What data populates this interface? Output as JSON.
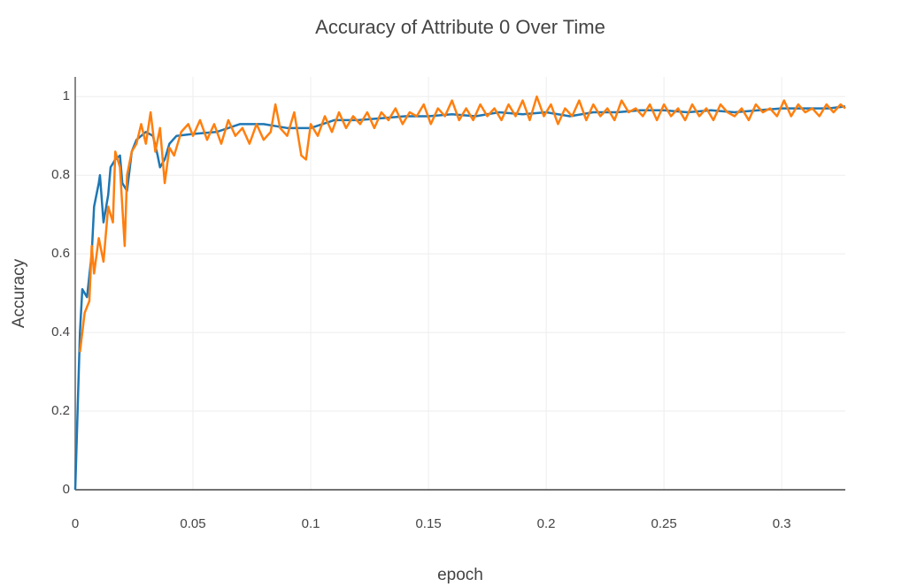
{
  "chart_data": {
    "type": "line",
    "title": "Accuracy of Attribute 0 Over Time",
    "xlabel": "epoch",
    "ylabel": "Accuracy",
    "xlim": [
      0,
      0.327
    ],
    "ylim": [
      0,
      1.05
    ],
    "xticks": [
      0,
      0.05,
      0.1,
      0.15,
      0.2,
      0.25,
      0.3
    ],
    "yticks": [
      0,
      0.2,
      0.4,
      0.6,
      0.8,
      1
    ],
    "grid": true,
    "series": [
      {
        "color": "#1f77b4",
        "x": [
          0,
          0.002,
          0.003,
          0.005,
          0.007,
          0.008,
          0.01,
          0.0105,
          0.012,
          0.014,
          0.015,
          0.017,
          0.019,
          0.02,
          0.022,
          0.024,
          0.026,
          0.028,
          0.03,
          0.033,
          0.035,
          0.036,
          0.038,
          0.04,
          0.043,
          0.05,
          0.06,
          0.07,
          0.08,
          0.09,
          0.1,
          0.11,
          0.12,
          0.13,
          0.14,
          0.15,
          0.16,
          0.17,
          0.18,
          0.19,
          0.2,
          0.21,
          0.22,
          0.23,
          0.24,
          0.25,
          0.26,
          0.27,
          0.28,
          0.29,
          0.3,
          0.31,
          0.32,
          0.327
        ],
        "values": [
          0,
          0.4,
          0.51,
          0.49,
          0.6,
          0.72,
          0.78,
          0.8,
          0.68,
          0.75,
          0.82,
          0.84,
          0.85,
          0.78,
          0.76,
          0.86,
          0.89,
          0.9,
          0.91,
          0.9,
          0.85,
          0.82,
          0.84,
          0.88,
          0.9,
          0.905,
          0.91,
          0.93,
          0.93,
          0.92,
          0.92,
          0.94,
          0.94,
          0.945,
          0.95,
          0.95,
          0.955,
          0.95,
          0.96,
          0.955,
          0.96,
          0.95,
          0.96,
          0.96,
          0.965,
          0.965,
          0.96,
          0.965,
          0.96,
          0.965,
          0.97,
          0.97,
          0.97,
          0.975
        ]
      },
      {
        "color": "#ff7f0e",
        "x": [
          0.002,
          0.004,
          0.006,
          0.007,
          0.008,
          0.01,
          0.012,
          0.014,
          0.016,
          0.017,
          0.019,
          0.021,
          0.022,
          0.024,
          0.026,
          0.028,
          0.03,
          0.032,
          0.034,
          0.036,
          0.038,
          0.04,
          0.042,
          0.045,
          0.048,
          0.05,
          0.053,
          0.056,
          0.059,
          0.062,
          0.065,
          0.068,
          0.071,
          0.074,
          0.077,
          0.08,
          0.083,
          0.085,
          0.087,
          0.09,
          0.093,
          0.096,
          0.098,
          0.1,
          0.103,
          0.106,
          0.109,
          0.112,
          0.115,
          0.118,
          0.121,
          0.124,
          0.127,
          0.13,
          0.133,
          0.136,
          0.139,
          0.142,
          0.145,
          0.148,
          0.151,
          0.154,
          0.157,
          0.16,
          0.163,
          0.166,
          0.169,
          0.172,
          0.175,
          0.178,
          0.181,
          0.184,
          0.187,
          0.19,
          0.193,
          0.196,
          0.199,
          0.202,
          0.205,
          0.208,
          0.211,
          0.214,
          0.217,
          0.22,
          0.223,
          0.226,
          0.229,
          0.232,
          0.235,
          0.238,
          0.241,
          0.244,
          0.247,
          0.25,
          0.253,
          0.256,
          0.259,
          0.262,
          0.265,
          0.268,
          0.271,
          0.274,
          0.277,
          0.28,
          0.283,
          0.286,
          0.289,
          0.292,
          0.295,
          0.298,
          0.301,
          0.304,
          0.307,
          0.31,
          0.313,
          0.316,
          0.319,
          0.322,
          0.325,
          0.327
        ],
        "values": [
          0.35,
          0.45,
          0.48,
          0.62,
          0.55,
          0.64,
          0.58,
          0.72,
          0.68,
          0.86,
          0.82,
          0.62,
          0.8,
          0.86,
          0.88,
          0.93,
          0.88,
          0.96,
          0.86,
          0.92,
          0.78,
          0.87,
          0.85,
          0.91,
          0.93,
          0.9,
          0.94,
          0.89,
          0.93,
          0.88,
          0.94,
          0.9,
          0.92,
          0.88,
          0.93,
          0.89,
          0.91,
          0.98,
          0.92,
          0.9,
          0.96,
          0.85,
          0.84,
          0.93,
          0.9,
          0.95,
          0.91,
          0.96,
          0.92,
          0.95,
          0.93,
          0.96,
          0.92,
          0.96,
          0.94,
          0.97,
          0.93,
          0.96,
          0.95,
          0.98,
          0.93,
          0.97,
          0.95,
          0.99,
          0.94,
          0.97,
          0.94,
          0.98,
          0.95,
          0.97,
          0.94,
          0.98,
          0.95,
          0.99,
          0.94,
          1.0,
          0.95,
          0.98,
          0.93,
          0.97,
          0.95,
          0.99,
          0.94,
          0.98,
          0.95,
          0.97,
          0.94,
          0.99,
          0.96,
          0.97,
          0.95,
          0.98,
          0.94,
          0.98,
          0.95,
          0.97,
          0.94,
          0.98,
          0.95,
          0.97,
          0.94,
          0.98,
          0.96,
          0.95,
          0.97,
          0.94,
          0.98,
          0.96,
          0.97,
          0.95,
          0.99,
          0.95,
          0.98,
          0.96,
          0.97,
          0.95,
          0.98,
          0.96,
          0.98,
          0.97
        ]
      }
    ]
  }
}
